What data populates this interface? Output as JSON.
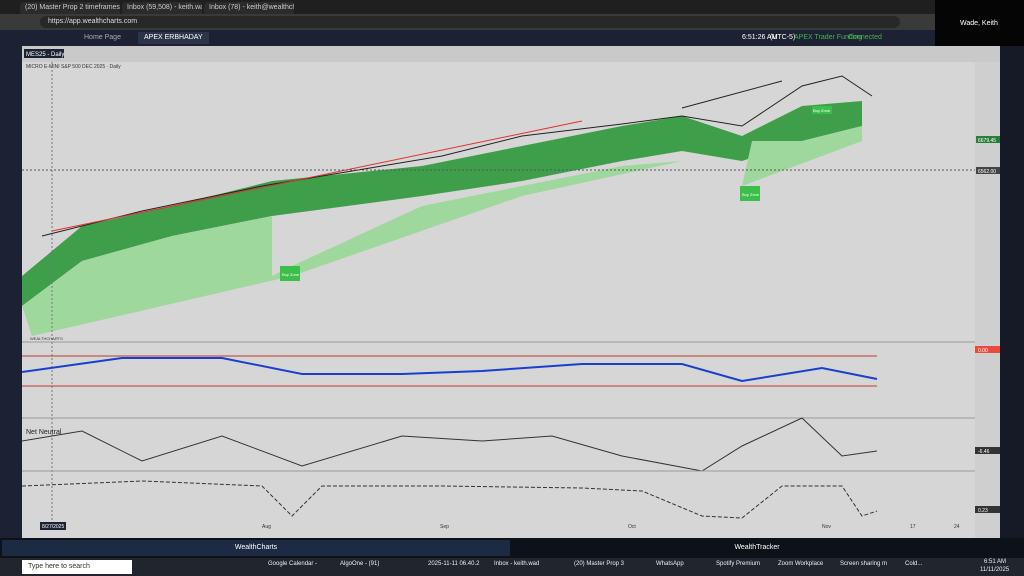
{
  "browser": {
    "tabs": [
      "(20) Master Prop 2 timeframes",
      "Inbox (59,508) - keith.wade.dbs",
      "Inbox (78) - keith@wealthcharts",
      "WealthCharts"
    ],
    "url": "https://app.wealthcharts.com"
  },
  "app": {
    "tabs": [
      "Home Page",
      "APEX ERBHADAY"
    ],
    "time": "6:51:26 AM",
    "timezone": "(UTC-5)",
    "broker": "APEX Trader Funding",
    "status": "Connected"
  },
  "video": {
    "name": "Wade, Keith"
  },
  "chart": {
    "symbol": "MES25 - Daily",
    "legend": "MICRO E-MINI S&P 500 DEC 2025 · Daily",
    "price_labels": [
      "6679.45",
      "6562.00"
    ],
    "zones": [
      "Buy Zone",
      "Buy Zone",
      "Buy Zone"
    ],
    "panel_label": "WEALTHCHARTS",
    "net_label": "Net Neutral",
    "panel_values": [
      "0.00",
      "-6.46",
      "0.23"
    ],
    "x_labels": [
      "8/27/2025",
      "Aug",
      "Sep",
      "Oct",
      "Nov",
      "17",
      "24"
    ]
  },
  "bottom_tabs": [
    "WealthCharts",
    "WealthTracker"
  ],
  "taskbar": {
    "search": "Type here to search",
    "items": [
      "Google Calendar -",
      "AlgoOne - (91)",
      "2025-11-11 06.40.2",
      "Inbox - keith.wad",
      "(20) Master Prop 3",
      "WhatsApp",
      "Spotify Premium",
      "Zoom Workplace",
      "Screen sharing m"
    ],
    "weather": "Cold...",
    "clock": "6:51 AM",
    "date": "11/11/2025"
  }
}
